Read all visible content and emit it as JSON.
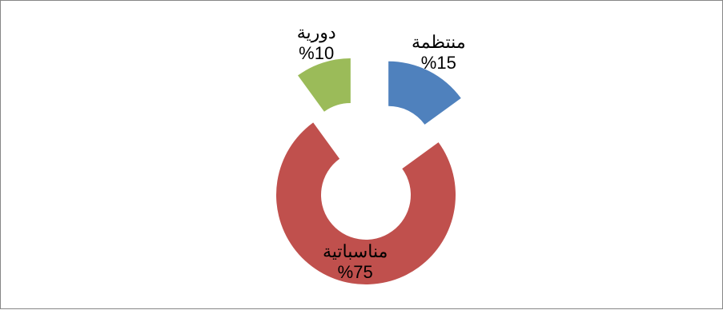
{
  "chart_data": {
    "type": "pie",
    "subtype": "exploded-doughnut",
    "title": "",
    "categories": [
      "منتظمة",
      "مناسباتية",
      "دورية"
    ],
    "values": [
      15,
      75,
      10
    ],
    "value_labels": [
      "%15",
      "%75",
      "%10"
    ],
    "colors": [
      "#4F81BD",
      "#C0504D",
      "#9BBB59"
    ],
    "legend": "none",
    "start_angle_deg": 0,
    "direction": "clockwise"
  }
}
